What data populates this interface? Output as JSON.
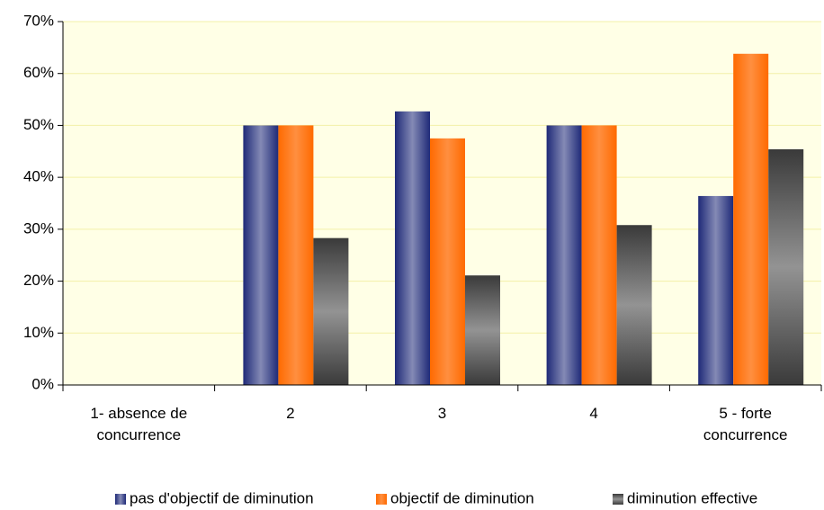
{
  "chart_data": {
    "type": "bar",
    "categories": [
      "1- absence de concurrence",
      "2",
      "3",
      "4",
      "5 - forte concurrence"
    ],
    "series": [
      {
        "name": "pas d'objectif de diminution",
        "color": "#1f2a78",
        "values": [
          0,
          50,
          52.7,
          50,
          36.4
        ]
      },
      {
        "name": "objectif de diminution",
        "color": "#ff6a00",
        "values": [
          0,
          50,
          47.5,
          50,
          63.8
        ]
      },
      {
        "name": "diminution effective",
        "color": "#3a3a3a",
        "values": [
          0,
          28.3,
          21.1,
          30.8,
          45.4
        ]
      }
    ],
    "ylim": [
      0,
      70
    ],
    "yticks": [
      {
        "value": 0,
        "label": "0%"
      },
      {
        "value": 10,
        "label": "10%"
      },
      {
        "value": 20,
        "label": "20%"
      },
      {
        "value": 30,
        "label": "30%"
      },
      {
        "value": 40,
        "label": "40%"
      },
      {
        "value": 50,
        "label": "50%"
      },
      {
        "value": 60,
        "label": "60%"
      },
      {
        "value": 70,
        "label": "70%"
      }
    ],
    "grid": true,
    "legend": "bottom"
  }
}
